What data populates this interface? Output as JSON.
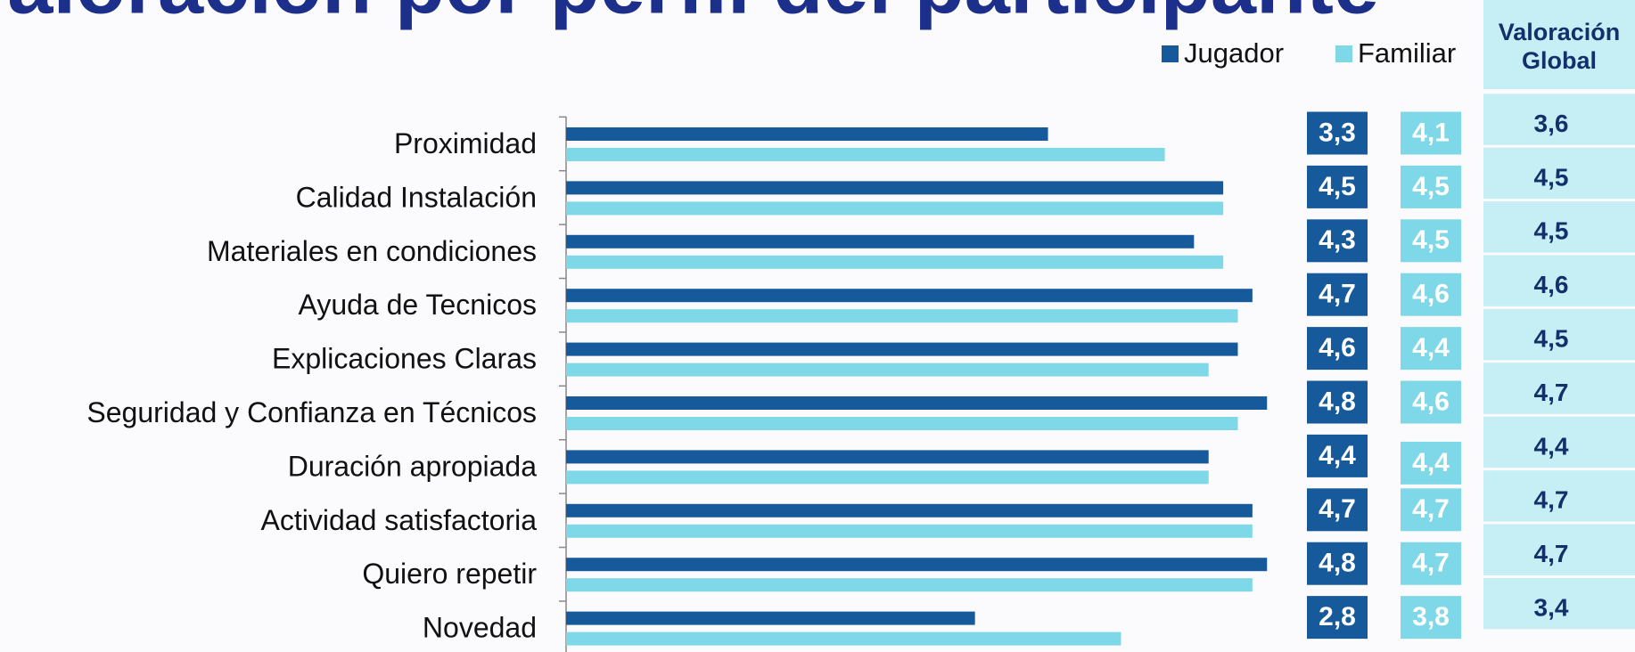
{
  "chart_data": {
    "type": "bar",
    "orientation": "horizontal",
    "title": "Valoración por perfil del participante",
    "categories": [
      "Proximidad",
      "Calidad Instalación",
      "Materiales en condiciones",
      "Ayuda de Tecnicos",
      "Explicaciones Claras",
      "Seguridad y Confianza en Técnicos",
      "Duración apropiada",
      "Actividad satisfactoria",
      "Quiero repetir",
      "Novedad"
    ],
    "series": [
      {
        "name": "Jugador",
        "color": "#175a9c",
        "values": [
          3.3,
          4.5,
          4.3,
          4.7,
          4.6,
          4.8,
          4.4,
          4.7,
          4.8,
          2.8
        ],
        "value_labels": [
          "3,3",
          "4,5",
          "4,3",
          "4,7",
          "4,6",
          "4,8",
          "4,4",
          "4,7",
          "4,8",
          "2,8"
        ]
      },
      {
        "name": "Familiar",
        "color": "#7fd8e8",
        "values": [
          4.1,
          4.5,
          4.5,
          4.6,
          4.4,
          4.6,
          4.4,
          4.7,
          4.7,
          3.8
        ],
        "value_labels": [
          "4,1",
          "4,5",
          "4,5",
          "4,6",
          "4,4",
          "4,6",
          "4,4",
          "4,7",
          "4,7",
          "3,8"
        ]
      }
    ],
    "xlim": [
      0,
      5
    ],
    "legend": "top-right",
    "global": {
      "title": "Valoración Global",
      "color": "#c6eef5",
      "values": [
        "3,6",
        "4,5",
        "4,5",
        "4,6",
        "4,5",
        "4,7",
        "4,4",
        "4,7",
        "4,7",
        "3,4"
      ]
    }
  }
}
